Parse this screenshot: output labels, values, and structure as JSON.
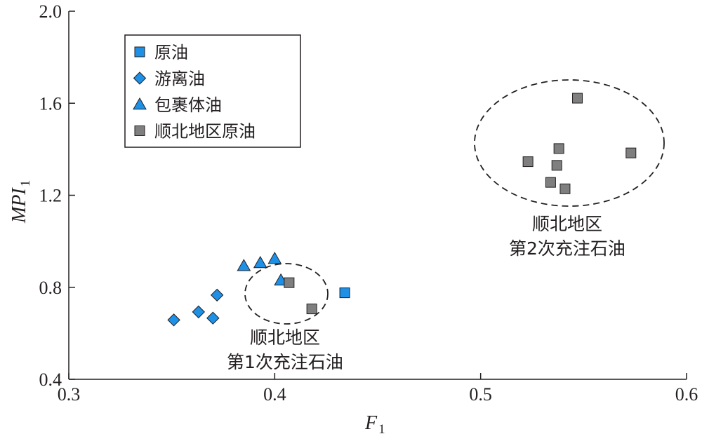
{
  "chart_data": {
    "type": "scatter",
    "xlabel": "F",
    "xlabel_sub": "1",
    "ylabel": "MPI",
    "ylabel_sub": "1",
    "xlim": [
      0.3,
      0.6
    ],
    "ylim": [
      0.4,
      2.0
    ],
    "xticks": [
      "0.3",
      "0.4",
      "0.5",
      "0.6"
    ],
    "yticks": [
      "0.4",
      "0.8",
      "1.2",
      "1.6",
      "2.0"
    ],
    "legend_position": "top-left",
    "series": [
      {
        "name": "原油",
        "marker": "square",
        "color": "#1e90e6",
        "points": [
          [
            0.434,
            0.776
          ]
        ]
      },
      {
        "name": "游离油",
        "marker": "diamond",
        "color": "#1e90e6",
        "points": [
          [
            0.351,
            0.658
          ],
          [
            0.363,
            0.693
          ],
          [
            0.37,
            0.666
          ],
          [
            0.372,
            0.766
          ]
        ]
      },
      {
        "name": "包裹体油",
        "marker": "triangle",
        "color": "#1e90e6",
        "points": [
          [
            0.385,
            0.893
          ],
          [
            0.393,
            0.906
          ],
          [
            0.4,
            0.924
          ],
          [
            0.403,
            0.83
          ]
        ]
      },
      {
        "name": "顺北地区原油",
        "marker": "square",
        "color": "#7f7f7f",
        "points": [
          [
            0.407,
            0.82
          ],
          [
            0.418,
            0.706
          ],
          [
            0.523,
            1.346
          ],
          [
            0.534,
            1.256
          ],
          [
            0.537,
            1.33
          ],
          [
            0.538,
            1.403
          ],
          [
            0.541,
            1.228
          ],
          [
            0.547,
            1.622
          ],
          [
            0.573,
            1.384
          ]
        ]
      }
    ],
    "annotations": [
      {
        "lines": [
          "顺北地区",
          "第1次充注石油"
        ]
      },
      {
        "lines": [
          "顺北地区",
          "第2次充注石油"
        ]
      }
    ]
  }
}
